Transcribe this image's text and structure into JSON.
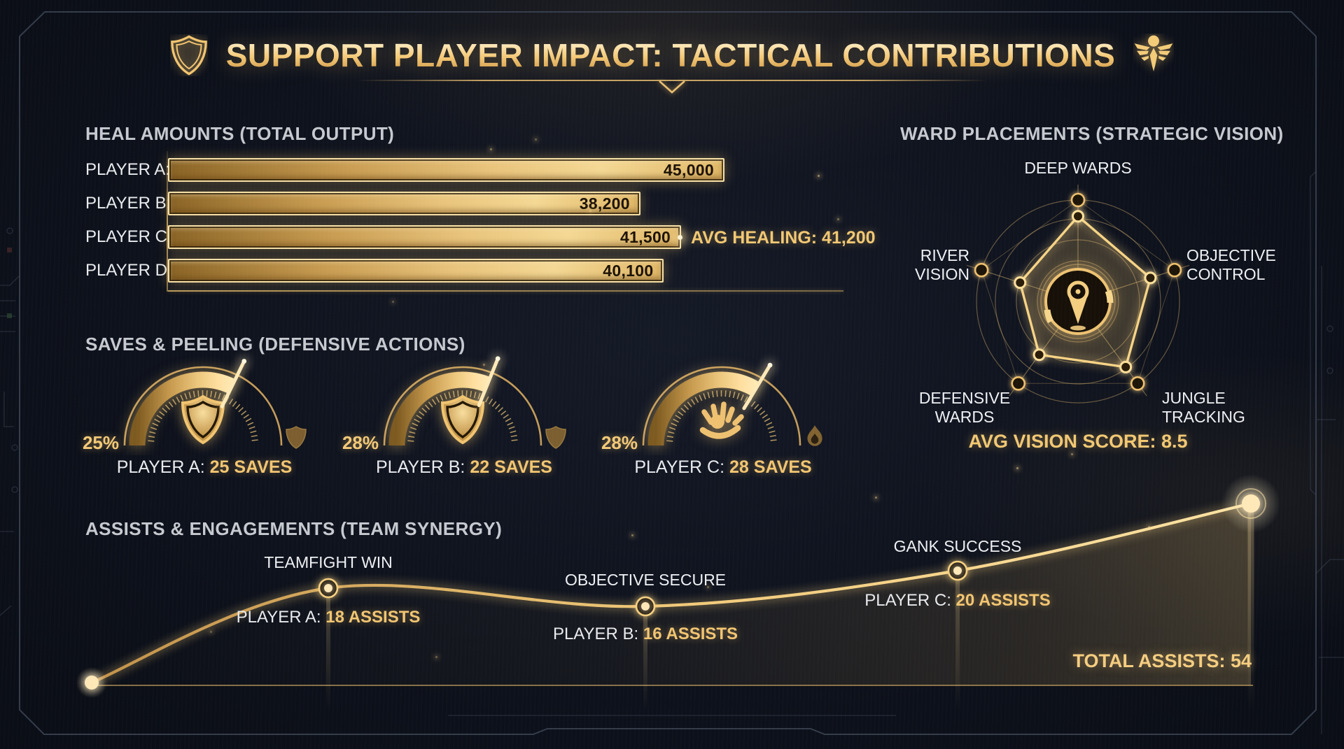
{
  "title": {
    "text": "SUPPORT PLAYER IMPACT: TACTICAL CONTRIBUTIONS",
    "left_icon": "shield",
    "right_icon": "winged-staff"
  },
  "colors": {
    "background": "#0d111b",
    "gold": "#f2c873",
    "gold_bright": "#ffe9b4",
    "gold_deep": "#9a6c28",
    "heading_text": "#c6c9cf",
    "label_text": "#e9ebee",
    "bar_value_text": "#1c1204",
    "frame_line": "#3c4454"
  },
  "heal_section": {
    "heading": "HEAL AMOUNTS (TOTAL OUTPUT)",
    "avg_label": "AVG HEALING: 41,200",
    "bars": [
      {
        "label": "PLAYER A:",
        "value": "45,000"
      },
      {
        "label": "PLAYER B:",
        "value": "38,200"
      },
      {
        "label": "PLAYER C:",
        "value": "41,500"
      },
      {
        "label": "PLAYER D:",
        "value": "40,100"
      }
    ]
  },
  "ward_section": {
    "heading": "WARD PLACEMENTS (STRATEGIC VISION)",
    "labels": {
      "top": "DEEP WARDS",
      "left": "RIVER\nVISION",
      "right": "OBJECTIVE\nCONTROL",
      "bottom_left": "DEFENSIVE\nWARDS",
      "bottom_right": "JUNGLE\nTRACKING"
    },
    "center_icon": "ward-pin",
    "avg_label": "AVG VISION SCORE: 8.5"
  },
  "saves_section": {
    "heading": "SAVES & PEELING (DEFENSIVE ACTIONS)",
    "gauges": [
      {
        "percent": "25%",
        "player": "PLAYER A:",
        "value": "25 SAVES",
        "center_icon": "shield",
        "end_icon": "shield"
      },
      {
        "percent": "28%",
        "player": "PLAYER B:",
        "value": "22 SAVES",
        "center_icon": "shield",
        "end_icon": "shield"
      },
      {
        "percent": "28%",
        "player": "PLAYER C:",
        "value": "28 SAVES",
        "center_icon": "protect-hands",
        "end_icon": "flame"
      }
    ]
  },
  "assists_section": {
    "heading": "ASSISTS & ENGAGEMENTS (TEAM SYNERGY)",
    "total_label": "TOTAL ASSISTS: 54",
    "points": [
      {
        "event": "TEAMFIGHT WIN",
        "player": "PLAYER A:",
        "value": "18 ASSISTS"
      },
      {
        "event": "OBJECTIVE SECURE",
        "player": "PLAYER B:",
        "value": "16 ASSISTS"
      },
      {
        "event": "GANK SUCCESS",
        "player": "PLAYER C:",
        "value": "20 ASSISTS"
      }
    ]
  },
  "chart_data": [
    {
      "type": "bar",
      "title": "HEAL AMOUNTS (TOTAL OUTPUT)",
      "orientation": "horizontal",
      "categories": [
        "PLAYER A",
        "PLAYER B",
        "PLAYER C",
        "PLAYER D"
      ],
      "values": [
        45000,
        38200,
        41500,
        40100
      ],
      "avg": 41200,
      "annotation": "AVG HEALING: 41,200",
      "xlim": [
        0,
        45000
      ]
    },
    {
      "type": "radar",
      "title": "WARD PLACEMENTS (STRATEGIC VISION)",
      "categories": [
        "DEEP WARDS",
        "OBJECTIVE CONTROL",
        "JUNGLE TRACKING",
        "DEFENSIVE WARDS",
        "RIVER VISION"
      ],
      "values_estimated": [
        8.4,
        7.5,
        8.0,
        6.5,
        6.0
      ],
      "scale": [
        0,
        10
      ],
      "rings": 4,
      "avg_vision_score": 8.5,
      "annotation": "AVG VISION SCORE: 8.5"
    },
    {
      "type": "gauge",
      "title": "SAVES & PEELING (DEFENSIVE ACTIONS)",
      "gauges": [
        {
          "label": "PLAYER A",
          "saves": 25,
          "percent": 25
        },
        {
          "label": "PLAYER B",
          "saves": 22,
          "percent": 28
        },
        {
          "label": "PLAYER C",
          "saves": 28,
          "percent": 28
        }
      ]
    },
    {
      "type": "line",
      "title": "ASSISTS & ENGAGEMENTS (TEAM SYNERGY)",
      "points": [
        {
          "label": "TEAMFIGHT WIN",
          "player": "PLAYER A",
          "assists": 18
        },
        {
          "label": "OBJECTIVE SECURE",
          "player": "PLAYER B",
          "assists": 16
        },
        {
          "label": "GANK SUCCESS",
          "player": "PLAYER C",
          "assists": 20
        }
      ],
      "total_assists": 54,
      "annotation": "TOTAL ASSISTS: 54"
    }
  ]
}
